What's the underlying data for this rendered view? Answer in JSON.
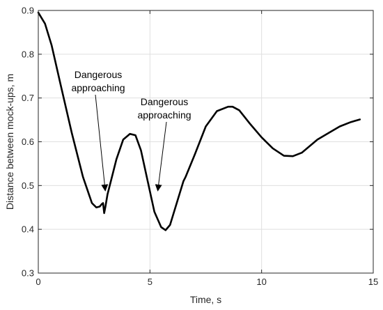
{
  "chart_data": {
    "type": "line",
    "xlabel": "Time, s",
    "ylabel": "Distance between mock-ups, m",
    "xlim": [
      0,
      15
    ],
    "ylim": [
      0.3,
      0.9
    ],
    "xticks": [
      0,
      5,
      10,
      15
    ],
    "yticks": [
      0.3,
      0.4,
      0.5,
      0.6,
      0.7,
      0.8,
      0.9
    ],
    "xtick_labels": [
      "0",
      "5",
      "10",
      "15"
    ],
    "ytick_labels": [
      "0.3",
      "0.4",
      "0.5",
      "0.6",
      "0.7",
      "0.8",
      "0.9"
    ],
    "grid": true,
    "series": [
      {
        "color": "#000000",
        "x": [
          0,
          0.3,
          0.6,
          1.0,
          1.5,
          2.0,
          2.4,
          2.6,
          2.75,
          2.85,
          2.9,
          2.95,
          3.0,
          3.1,
          3.3,
          3.5,
          3.8,
          4.1,
          4.35,
          4.6,
          4.9,
          5.2,
          5.5,
          5.7,
          5.9,
          6.2,
          6.5,
          6.6,
          7.0,
          7.5,
          8.0,
          8.5,
          8.7,
          9.0,
          9.5,
          10.0,
          10.5,
          11.0,
          11.4,
          11.8,
          12.5,
          13.0,
          13.5,
          14.0,
          14.4
        ],
        "y": [
          0.895,
          0.87,
          0.82,
          0.73,
          0.62,
          0.52,
          0.46,
          0.45,
          0.452,
          0.458,
          0.46,
          0.437,
          0.45,
          0.48,
          0.52,
          0.56,
          0.605,
          0.618,
          0.615,
          0.58,
          0.51,
          0.44,
          0.405,
          0.398,
          0.41,
          0.46,
          0.51,
          0.52,
          0.57,
          0.635,
          0.67,
          0.68,
          0.68,
          0.672,
          0.64,
          0.61,
          0.585,
          0.568,
          0.567,
          0.575,
          0.605,
          0.62,
          0.635,
          0.645,
          0.651
        ]
      }
    ],
    "annotations": [
      {
        "text_lines": [
          "Dangerous",
          "approaching"
        ],
        "x": 3.0,
        "y": 0.488
      },
      {
        "text_lines": [
          "Dangerous",
          "approaching"
        ],
        "x": 5.35,
        "y": 0.488
      }
    ]
  }
}
